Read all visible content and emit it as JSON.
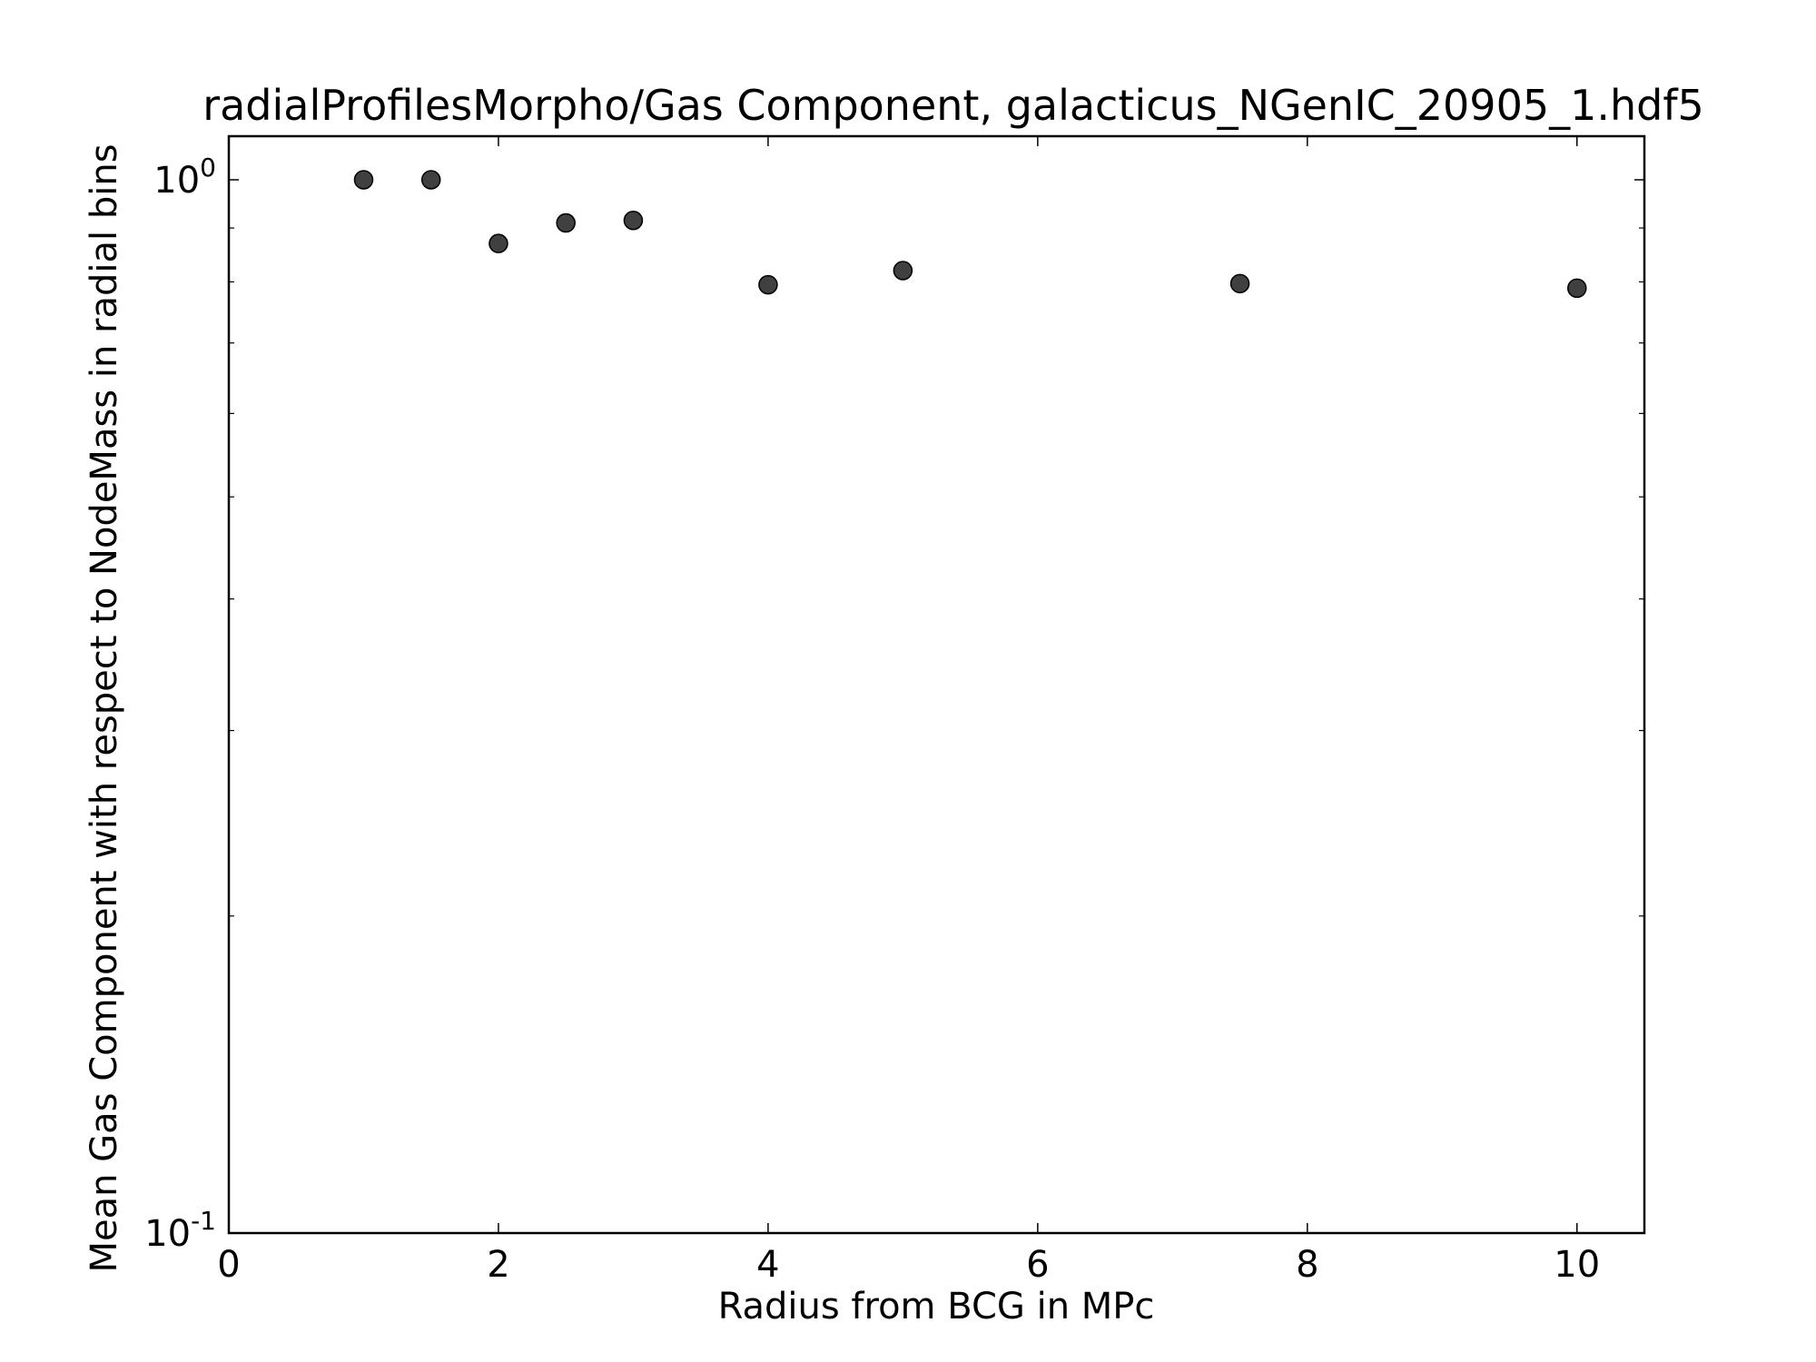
{
  "chart_data": {
    "type": "scatter",
    "title": "radialProfilesMorpho/Gas Component, galacticus_NGenIC_20905_1.hdf5",
    "xlabel": "Radius from BCG in MPc",
    "ylabel": "Mean Gas Component with respect to NodeMass in radial bins",
    "xlim": [
      0,
      10.5
    ],
    "ylim": [
      0.1,
      1.1
    ],
    "yscale": "log",
    "xticks": [
      0,
      2,
      4,
      6,
      8,
      10
    ],
    "xtick_labels": [
      "0",
      "2",
      "4",
      "6",
      "8",
      "10"
    ],
    "yticks": [
      0.1,
      1
    ],
    "ytick_labels": [
      {
        "base": "10",
        "exp": "-1"
      },
      {
        "base": "10",
        "exp": "0"
      }
    ],
    "grid": false,
    "series": [
      {
        "x": [
          1,
          1.5,
          2,
          2.5,
          3,
          4,
          5,
          7.5,
          10
        ],
        "y": [
          1.0,
          1.0,
          0.87,
          0.91,
          0.915,
          0.795,
          0.82,
          0.797,
          0.789
        ],
        "color": "#404040"
      }
    ]
  }
}
